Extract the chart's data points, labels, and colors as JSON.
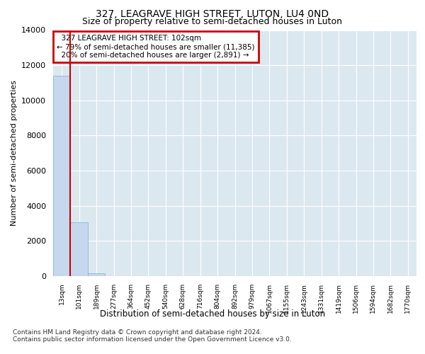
{
  "title1": "327, LEAGRAVE HIGH STREET, LUTON, LU4 0ND",
  "title2": "Size of property relative to semi-detached houses in Luton",
  "xlabel": "Distribution of semi-detached houses by size in Luton",
  "ylabel": "Number of semi-detached properties",
  "annotation_line1": "  327 LEAGRAVE HIGH STREET: 102sqm",
  "annotation_line2": "← 79% of semi-detached houses are smaller (11,385)",
  "annotation_line3": "  20% of semi-detached houses are larger (2,891) →",
  "footer1": "Contains HM Land Registry data © Crown copyright and database right 2024.",
  "footer2": "Contains public sector information licensed under the Open Government Licence v3.0.",
  "categories": [
    "13sqm",
    "101sqm",
    "189sqm",
    "277sqm",
    "364sqm",
    "452sqm",
    "540sqm",
    "628sqm",
    "716sqm",
    "804sqm",
    "892sqm",
    "979sqm",
    "1067sqm",
    "1155sqm",
    "1243sqm",
    "1331sqm",
    "1419sqm",
    "1506sqm",
    "1594sqm",
    "1682sqm",
    "1770sqm"
  ],
  "values": [
    11385,
    3060,
    175,
    0,
    0,
    0,
    0,
    0,
    0,
    0,
    0,
    0,
    0,
    0,
    0,
    0,
    0,
    0,
    0,
    0,
    0
  ],
  "bar_color": "#c5d8ed",
  "bar_edge_color": "#7bafd4",
  "marker_line_color": "#cc0000",
  "annotation_box_edge_color": "#cc0000",
  "ylim": [
    0,
    14000
  ],
  "yticks": [
    0,
    2000,
    4000,
    6000,
    8000,
    10000,
    12000,
    14000
  ],
  "bg_color": "#dce8f0",
  "fig_color": "#ffffff",
  "grid_color": "#ffffff",
  "title1_fontsize": 10,
  "title2_fontsize": 9
}
